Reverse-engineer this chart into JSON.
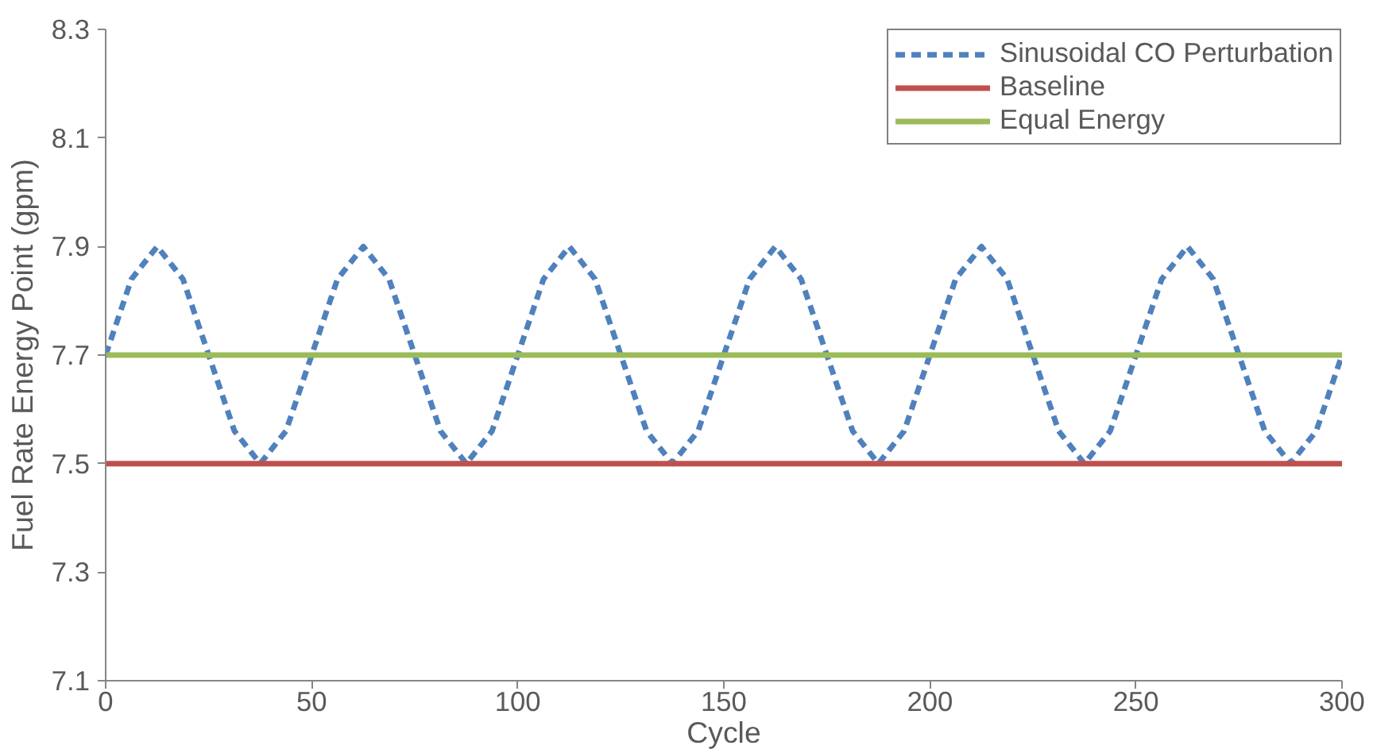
{
  "chart_data": {
    "type": "line",
    "xlabel": "Cycle",
    "ylabel": "Fuel Rate Energy Point (gpm)",
    "xlim": [
      0,
      300
    ],
    "xticks": [
      0,
      50,
      100,
      150,
      200,
      250,
      300
    ],
    "ylim": [
      7.1,
      8.3
    ],
    "yticks": [
      7.1,
      7.3,
      7.5,
      7.7,
      7.9,
      8.1,
      8.3
    ],
    "grid": false,
    "legend": "top right",
    "marker": "none",
    "series": [
      {
        "name": "Sinusoidal CO Perturbation",
        "color": "#4f81bd",
        "line_style": "dashed",
        "x": [
          0,
          6.25,
          12.5,
          18.75,
          25,
          31.25,
          37.5,
          43.75,
          50,
          56.25,
          62.5,
          68.75,
          75,
          81.25,
          87.5,
          93.75,
          100,
          106.25,
          112.5,
          118.75,
          125,
          131.25,
          137.5,
          143.75,
          150,
          156.25,
          162.5,
          168.75,
          175,
          181.25,
          187.5,
          193.75,
          200,
          206.25,
          212.5,
          218.75,
          225,
          231.25,
          237.5,
          243.75,
          250,
          256.25,
          262.5,
          268.75,
          275,
          281.25,
          287.5,
          293.75,
          300
        ],
        "values": [
          7.7,
          7.84,
          7.9,
          7.84,
          7.7,
          7.56,
          7.5,
          7.56,
          7.7,
          7.84,
          7.9,
          7.84,
          7.7,
          7.56,
          7.5,
          7.56,
          7.7,
          7.84,
          7.9,
          7.84,
          7.7,
          7.56,
          7.5,
          7.56,
          7.7,
          7.84,
          7.9,
          7.84,
          7.7,
          7.56,
          7.5,
          7.56,
          7.7,
          7.84,
          7.9,
          7.84,
          7.7,
          7.56,
          7.5,
          7.56,
          7.7,
          7.84,
          7.9,
          7.84,
          7.7,
          7.56,
          7.5,
          7.56,
          7.7
        ]
      },
      {
        "name": "Baseline",
        "color": "#c0504d",
        "line_style": "solid",
        "x": [
          0,
          300
        ],
        "values": [
          7.5,
          7.5
        ]
      },
      {
        "name": "Equal Energy",
        "color": "#9bbb59",
        "line_style": "solid",
        "x": [
          0,
          300
        ],
        "values": [
          7.7,
          7.7
        ]
      }
    ]
  }
}
